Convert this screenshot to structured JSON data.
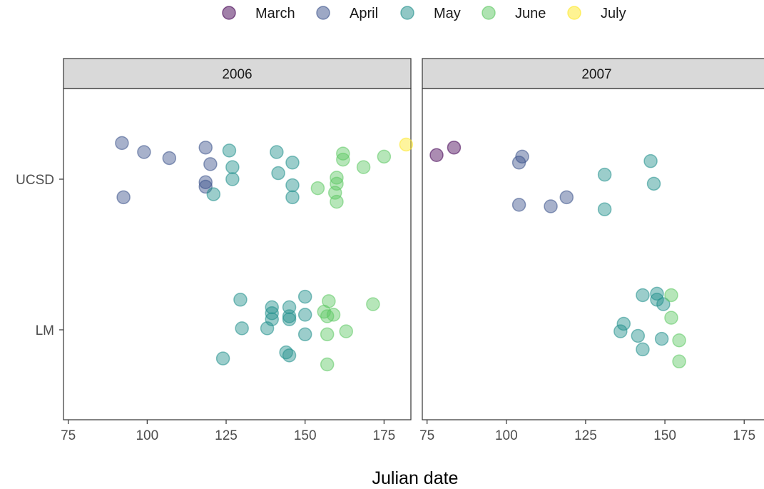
{
  "chart_data": {
    "type": "scatter",
    "xlabel": "Julian date",
    "ylabel": "",
    "xlim": [
      73.5,
      183.5
    ],
    "x_ticks": [
      "75",
      "100",
      "125",
      "150",
      "175"
    ],
    "y_categories": [
      "LM",
      "UCSD"
    ],
    "legend": {
      "position": "top",
      "entries": [
        {
          "name": "March",
          "color": "#440154"
        },
        {
          "name": "April",
          "color": "#3B528B"
        },
        {
          "name": "May",
          "color": "#21908C"
        },
        {
          "name": "June",
          "color": "#5DC863"
        },
        {
          "name": "July",
          "color": "#FDE725"
        }
      ]
    },
    "panels": [
      {
        "strip": "2006",
        "points": [
          {
            "x": 92,
            "y": "UCSD",
            "offset": 0.24,
            "month": "April"
          },
          {
            "x": 99,
            "y": "UCSD",
            "offset": 0.18,
            "month": "April"
          },
          {
            "x": 107,
            "y": "UCSD",
            "offset": 0.14,
            "month": "April"
          },
          {
            "x": 118.5,
            "y": "UCSD",
            "offset": 0.21,
            "month": "April"
          },
          {
            "x": 120,
            "y": "UCSD",
            "offset": 0.1,
            "month": "April"
          },
          {
            "x": 92.5,
            "y": "UCSD",
            "offset": -0.12,
            "month": "April"
          },
          {
            "x": 118.5,
            "y": "UCSD",
            "offset": -0.02,
            "month": "April"
          },
          {
            "x": 118.5,
            "y": "UCSD",
            "offset": -0.05,
            "month": "April"
          },
          {
            "x": 126,
            "y": "UCSD",
            "offset": 0.19,
            "month": "May"
          },
          {
            "x": 127,
            "y": "UCSD",
            "offset": 0.08,
            "month": "May"
          },
          {
            "x": 127,
            "y": "UCSD",
            "offset": 0.0,
            "month": "May"
          },
          {
            "x": 121,
            "y": "UCSD",
            "offset": -0.1,
            "month": "May"
          },
          {
            "x": 141,
            "y": "UCSD",
            "offset": 0.18,
            "month": "May"
          },
          {
            "x": 146,
            "y": "UCSD",
            "offset": 0.11,
            "month": "May"
          },
          {
            "x": 141.5,
            "y": "UCSD",
            "offset": 0.04,
            "month": "May"
          },
          {
            "x": 146,
            "y": "UCSD",
            "offset": -0.04,
            "month": "May"
          },
          {
            "x": 146,
            "y": "UCSD",
            "offset": -0.12,
            "month": "May"
          },
          {
            "x": 162,
            "y": "UCSD",
            "offset": 0.17,
            "month": "June"
          },
          {
            "x": 162,
            "y": "UCSD",
            "offset": 0.13,
            "month": "June"
          },
          {
            "x": 175,
            "y": "UCSD",
            "offset": 0.15,
            "month": "June"
          },
          {
            "x": 168.5,
            "y": "UCSD",
            "offset": 0.08,
            "month": "June"
          },
          {
            "x": 160,
            "y": "UCSD",
            "offset": 0.01,
            "month": "June"
          },
          {
            "x": 160,
            "y": "UCSD",
            "offset": -0.03,
            "month": "June"
          },
          {
            "x": 154,
            "y": "UCSD",
            "offset": -0.06,
            "month": "June"
          },
          {
            "x": 159.5,
            "y": "UCSD",
            "offset": -0.09,
            "month": "June"
          },
          {
            "x": 160,
            "y": "UCSD",
            "offset": -0.15,
            "month": "June"
          },
          {
            "x": 182,
            "y": "UCSD",
            "offset": 0.23,
            "month": "July"
          },
          {
            "x": 129.5,
            "y": "LM",
            "offset": 0.2,
            "month": "May"
          },
          {
            "x": 150,
            "y": "LM",
            "offset": 0.22,
            "month": "May"
          },
          {
            "x": 139.5,
            "y": "LM",
            "offset": 0.15,
            "month": "May"
          },
          {
            "x": 145,
            "y": "LM",
            "offset": 0.15,
            "month": "May"
          },
          {
            "x": 139.5,
            "y": "LM",
            "offset": 0.11,
            "month": "May"
          },
          {
            "x": 150,
            "y": "LM",
            "offset": 0.1,
            "month": "May"
          },
          {
            "x": 139.5,
            "y": "LM",
            "offset": 0.07,
            "month": "May"
          },
          {
            "x": 145,
            "y": "LM",
            "offset": 0.09,
            "month": "May"
          },
          {
            "x": 145,
            "y": "LM",
            "offset": 0.07,
            "month": "May"
          },
          {
            "x": 130,
            "y": "LM",
            "offset": 0.01,
            "month": "May"
          },
          {
            "x": 138,
            "y": "LM",
            "offset": 0.01,
            "month": "May"
          },
          {
            "x": 150,
            "y": "LM",
            "offset": -0.03,
            "month": "May"
          },
          {
            "x": 144,
            "y": "LM",
            "offset": -0.15,
            "month": "May"
          },
          {
            "x": 145,
            "y": "LM",
            "offset": -0.17,
            "month": "May"
          },
          {
            "x": 124,
            "y": "LM",
            "offset": -0.19,
            "month": "May"
          },
          {
            "x": 157.5,
            "y": "LM",
            "offset": 0.19,
            "month": "June"
          },
          {
            "x": 171.5,
            "y": "LM",
            "offset": 0.17,
            "month": "June"
          },
          {
            "x": 156,
            "y": "LM",
            "offset": 0.12,
            "month": "June"
          },
          {
            "x": 159,
            "y": "LM",
            "offset": 0.1,
            "month": "June"
          },
          {
            "x": 157,
            "y": "LM",
            "offset": 0.09,
            "month": "June"
          },
          {
            "x": 157,
            "y": "LM",
            "offset": -0.03,
            "month": "June"
          },
          {
            "x": 163,
            "y": "LM",
            "offset": -0.01,
            "month": "June"
          },
          {
            "x": 157,
            "y": "LM",
            "offset": -0.23,
            "month": "June"
          }
        ]
      },
      {
        "strip": "2007",
        "points": [
          {
            "x": 78,
            "y": "UCSD",
            "offset": 0.16,
            "month": "March"
          },
          {
            "x": 83.5,
            "y": "UCSD",
            "offset": 0.21,
            "month": "March"
          },
          {
            "x": 105,
            "y": "UCSD",
            "offset": 0.15,
            "month": "April"
          },
          {
            "x": 104,
            "y": "UCSD",
            "offset": 0.11,
            "month": "April"
          },
          {
            "x": 104,
            "y": "UCSD",
            "offset": -0.17,
            "month": "April"
          },
          {
            "x": 114,
            "y": "UCSD",
            "offset": -0.18,
            "month": "April"
          },
          {
            "x": 119,
            "y": "UCSD",
            "offset": -0.12,
            "month": "April"
          },
          {
            "x": 131,
            "y": "UCSD",
            "offset": 0.03,
            "month": "May"
          },
          {
            "x": 145.5,
            "y": "UCSD",
            "offset": 0.12,
            "month": "May"
          },
          {
            "x": 146.5,
            "y": "UCSD",
            "offset": -0.03,
            "month": "May"
          },
          {
            "x": 131,
            "y": "UCSD",
            "offset": -0.2,
            "month": "May"
          },
          {
            "x": 143,
            "y": "LM",
            "offset": 0.23,
            "month": "May"
          },
          {
            "x": 147.5,
            "y": "LM",
            "offset": 0.24,
            "month": "May"
          },
          {
            "x": 147.5,
            "y": "LM",
            "offset": 0.2,
            "month": "May"
          },
          {
            "x": 149.5,
            "y": "LM",
            "offset": 0.17,
            "month": "May"
          },
          {
            "x": 137,
            "y": "LM",
            "offset": 0.04,
            "month": "May"
          },
          {
            "x": 136,
            "y": "LM",
            "offset": -0.01,
            "month": "May"
          },
          {
            "x": 141.5,
            "y": "LM",
            "offset": -0.04,
            "month": "May"
          },
          {
            "x": 149,
            "y": "LM",
            "offset": -0.06,
            "month": "May"
          },
          {
            "x": 143,
            "y": "LM",
            "offset": -0.13,
            "month": "May"
          },
          {
            "x": 152,
            "y": "LM",
            "offset": 0.23,
            "month": "June"
          },
          {
            "x": 152,
            "y": "LM",
            "offset": 0.08,
            "month": "June"
          },
          {
            "x": 154.5,
            "y": "LM",
            "offset": -0.07,
            "month": "June"
          },
          {
            "x": 154.5,
            "y": "LM",
            "offset": -0.21,
            "month": "June"
          }
        ]
      }
    ]
  }
}
